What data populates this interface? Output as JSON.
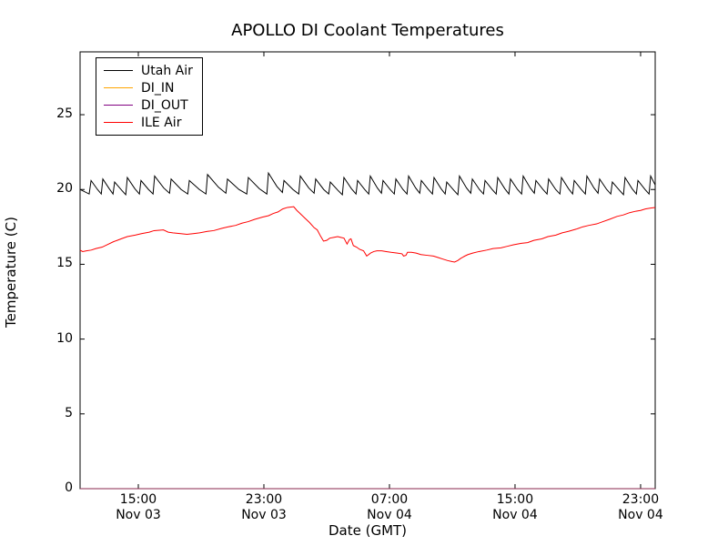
{
  "chart_data": {
    "type": "line",
    "title": "APOLLO DI Coolant Temperatures",
    "xlabel": "Date (GMT)",
    "ylabel": "Temperature (C)",
    "background": "#ffffff",
    "grid": false,
    "legend_position": "upper left",
    "ylim": [
      0,
      29.2
    ],
    "yticks": [
      0,
      5,
      10,
      15,
      20,
      25
    ],
    "xlim_hours": [
      0.29,
      36.93
    ],
    "x_unit": "hours since Nov 03 11:00 GMT",
    "xticks": [
      {
        "t": 4,
        "time": "15:00",
        "date": "Nov 03"
      },
      {
        "t": 12,
        "time": "23:00",
        "date": "Nov 03"
      },
      {
        "t": 20,
        "time": "07:00",
        "date": "Nov 04"
      },
      {
        "t": 28,
        "time": "15:00",
        "date": "Nov 04"
      },
      {
        "t": 36,
        "time": "23:00",
        "date": "Nov 04"
      }
    ],
    "series": [
      {
        "name": "Utah Air",
        "color": "#000000",
        "points": [
          [
            0.29,
            20.0
          ],
          [
            0.87,
            19.7
          ],
          [
            0.99,
            20.6
          ],
          [
            1.4,
            20.0
          ],
          [
            1.64,
            19.7
          ],
          [
            1.74,
            20.7
          ],
          [
            2.15,
            20.05
          ],
          [
            2.39,
            19.7
          ],
          [
            2.49,
            20.5
          ],
          [
            2.94,
            19.95
          ],
          [
            3.2,
            19.65
          ],
          [
            3.3,
            20.8
          ],
          [
            3.78,
            20.05
          ],
          [
            4.07,
            19.7
          ],
          [
            4.17,
            20.6
          ],
          [
            4.65,
            20.0
          ],
          [
            4.94,
            19.7
          ],
          [
            5.04,
            20.9
          ],
          [
            5.62,
            20.1
          ],
          [
            5.99,
            19.75
          ],
          [
            6.09,
            20.7
          ],
          [
            6.73,
            20.0
          ],
          [
            7.15,
            19.7
          ],
          [
            7.25,
            20.6
          ],
          [
            7.89,
            20.0
          ],
          [
            8.31,
            19.7
          ],
          [
            8.41,
            21.0
          ],
          [
            9.11,
            20.15
          ],
          [
            9.58,
            19.75
          ],
          [
            9.68,
            20.7
          ],
          [
            10.41,
            20.0
          ],
          [
            10.91,
            19.7
          ],
          [
            11.01,
            20.8
          ],
          [
            11.71,
            20.05
          ],
          [
            12.19,
            19.7
          ],
          [
            12.29,
            21.1
          ],
          [
            12.83,
            20.2
          ],
          [
            13.18,
            19.8
          ],
          [
            13.28,
            20.6
          ],
          [
            13.85,
            20.0
          ],
          [
            14.22,
            19.7
          ],
          [
            14.32,
            20.9
          ],
          [
            14.86,
            20.1
          ],
          [
            15.2,
            19.75
          ],
          [
            15.3,
            20.7
          ],
          [
            15.81,
            20.0
          ],
          [
            16.13,
            19.7
          ],
          [
            16.23,
            20.5
          ],
          [
            16.71,
            19.95
          ],
          [
            17.0,
            19.65
          ],
          [
            17.1,
            20.8
          ],
          [
            17.58,
            20.05
          ],
          [
            17.87,
            19.7
          ],
          [
            17.97,
            20.6
          ],
          [
            18.42,
            20.0
          ],
          [
            18.68,
            19.7
          ],
          [
            18.78,
            20.9
          ],
          [
            19.23,
            20.1
          ],
          [
            19.49,
            19.75
          ],
          [
            19.59,
            20.6
          ],
          [
            20.04,
            20.0
          ],
          [
            20.31,
            19.7
          ],
          [
            20.41,
            20.7
          ],
          [
            20.86,
            20.0
          ],
          [
            21.12,
            19.7
          ],
          [
            21.22,
            20.9
          ],
          [
            21.67,
            20.1
          ],
          [
            21.93,
            19.75
          ],
          [
            22.03,
            20.6
          ],
          [
            22.48,
            20.0
          ],
          [
            22.74,
            19.7
          ],
          [
            22.84,
            20.8
          ],
          [
            23.29,
            20.05
          ],
          [
            23.55,
            19.7
          ],
          [
            23.65,
            20.5
          ],
          [
            24.1,
            19.95
          ],
          [
            24.36,
            19.65
          ],
          [
            24.46,
            20.9
          ],
          [
            24.91,
            20.1
          ],
          [
            25.18,
            19.75
          ],
          [
            25.28,
            20.7
          ],
          [
            25.73,
            20.0
          ],
          [
            25.99,
            19.7
          ],
          [
            26.09,
            20.6
          ],
          [
            26.54,
            20.0
          ],
          [
            26.8,
            19.7
          ],
          [
            26.9,
            20.8
          ],
          [
            27.35,
            20.05
          ],
          [
            27.61,
            19.7
          ],
          [
            27.71,
            20.7
          ],
          [
            28.16,
            20.0
          ],
          [
            28.42,
            19.7
          ],
          [
            28.52,
            20.9
          ],
          [
            28.97,
            20.1
          ],
          [
            29.23,
            19.75
          ],
          [
            29.33,
            20.6
          ],
          [
            29.78,
            20.0
          ],
          [
            30.04,
            19.7
          ],
          [
            30.14,
            20.7
          ],
          [
            30.59,
            20.0
          ],
          [
            30.86,
            19.7
          ],
          [
            30.96,
            20.8
          ],
          [
            31.41,
            20.05
          ],
          [
            31.67,
            19.7
          ],
          [
            31.77,
            20.6
          ],
          [
            32.22,
            20.0
          ],
          [
            32.48,
            19.7
          ],
          [
            32.58,
            20.9
          ],
          [
            33.03,
            20.1
          ],
          [
            33.29,
            19.75
          ],
          [
            33.39,
            20.7
          ],
          [
            33.84,
            20.0
          ],
          [
            34.1,
            19.7
          ],
          [
            34.2,
            20.5
          ],
          [
            34.65,
            19.95
          ],
          [
            34.91,
            19.65
          ],
          [
            35.01,
            20.8
          ],
          [
            35.46,
            20.05
          ],
          [
            35.73,
            19.7
          ],
          [
            35.83,
            20.6
          ],
          [
            36.28,
            20.0
          ],
          [
            36.54,
            19.7
          ],
          [
            36.64,
            20.9
          ],
          [
            36.93,
            20.3
          ]
        ]
      },
      {
        "name": "DI_IN",
        "color": "#ffa500",
        "points": [
          [
            0.29,
            0
          ],
          [
            36.93,
            0
          ]
        ]
      },
      {
        "name": "DI_OUT",
        "color": "#800080",
        "points": [
          [
            0.29,
            0
          ],
          [
            36.93,
            0
          ]
        ]
      },
      {
        "name": "ILE Air",
        "color": "#ff0000",
        "points": [
          [
            0.29,
            15.95
          ],
          [
            0.45,
            15.85
          ],
          [
            0.7,
            15.9
          ],
          [
            1.0,
            15.95
          ],
          [
            1.3,
            16.05
          ],
          [
            1.7,
            16.15
          ],
          [
            2.0,
            16.3
          ],
          [
            2.4,
            16.5
          ],
          [
            2.9,
            16.7
          ],
          [
            3.3,
            16.85
          ],
          [
            3.8,
            16.95
          ],
          [
            4.2,
            17.05
          ],
          [
            4.7,
            17.15
          ],
          [
            5.0,
            17.25
          ],
          [
            5.6,
            17.3
          ],
          [
            5.9,
            17.15
          ],
          [
            6.2,
            17.1
          ],
          [
            6.7,
            17.05
          ],
          [
            7.1,
            17.0
          ],
          [
            7.5,
            17.05
          ],
          [
            7.9,
            17.1
          ],
          [
            8.4,
            17.2
          ],
          [
            8.8,
            17.25
          ],
          [
            9.3,
            17.4
          ],
          [
            9.7,
            17.5
          ],
          [
            10.2,
            17.6
          ],
          [
            10.6,
            17.75
          ],
          [
            11.0,
            17.85
          ],
          [
            11.4,
            18.0
          ],
          [
            11.9,
            18.15
          ],
          [
            12.3,
            18.25
          ],
          [
            12.6,
            18.4
          ],
          [
            12.9,
            18.5
          ],
          [
            13.2,
            18.7
          ],
          [
            13.5,
            18.8
          ],
          [
            13.9,
            18.85
          ],
          [
            14.1,
            18.6
          ],
          [
            14.3,
            18.4
          ],
          [
            14.6,
            18.1
          ],
          [
            14.9,
            17.8
          ],
          [
            15.2,
            17.45
          ],
          [
            15.4,
            17.3
          ],
          [
            15.6,
            16.9
          ],
          [
            15.8,
            16.55
          ],
          [
            16.0,
            16.6
          ],
          [
            16.2,
            16.75
          ],
          [
            16.45,
            16.8
          ],
          [
            16.7,
            16.85
          ],
          [
            16.9,
            16.8
          ],
          [
            17.1,
            16.75
          ],
          [
            17.3,
            16.35
          ],
          [
            17.45,
            16.65
          ],
          [
            17.55,
            16.7
          ],
          [
            17.7,
            16.25
          ],
          [
            17.9,
            16.15
          ],
          [
            18.1,
            16.0
          ],
          [
            18.35,
            15.9
          ],
          [
            18.55,
            15.55
          ],
          [
            18.8,
            15.75
          ],
          [
            19.0,
            15.85
          ],
          [
            19.2,
            15.9
          ],
          [
            19.5,
            15.9
          ],
          [
            19.8,
            15.85
          ],
          [
            20.1,
            15.8
          ],
          [
            20.5,
            15.75
          ],
          [
            20.8,
            15.7
          ],
          [
            20.9,
            15.55
          ],
          [
            21.05,
            15.6
          ],
          [
            21.15,
            15.8
          ],
          [
            21.4,
            15.8
          ],
          [
            21.7,
            15.75
          ],
          [
            22.0,
            15.65
          ],
          [
            22.4,
            15.6
          ],
          [
            22.8,
            15.55
          ],
          [
            23.1,
            15.45
          ],
          [
            23.4,
            15.35
          ],
          [
            23.7,
            15.25
          ],
          [
            24.0,
            15.18
          ],
          [
            24.15,
            15.15
          ],
          [
            24.35,
            15.25
          ],
          [
            24.55,
            15.4
          ],
          [
            24.8,
            15.55
          ],
          [
            25.0,
            15.65
          ],
          [
            25.3,
            15.75
          ],
          [
            25.7,
            15.85
          ],
          [
            26.2,
            15.95
          ],
          [
            26.6,
            16.05
          ],
          [
            27.1,
            16.1
          ],
          [
            27.5,
            16.2
          ],
          [
            27.9,
            16.3
          ],
          [
            28.4,
            16.4
          ],
          [
            28.8,
            16.45
          ],
          [
            29.2,
            16.6
          ],
          [
            29.7,
            16.7
          ],
          [
            30.1,
            16.85
          ],
          [
            30.6,
            16.95
          ],
          [
            31.0,
            17.1
          ],
          [
            31.4,
            17.2
          ],
          [
            31.9,
            17.35
          ],
          [
            32.3,
            17.5
          ],
          [
            32.7,
            17.6
          ],
          [
            33.2,
            17.7
          ],
          [
            33.6,
            17.85
          ],
          [
            34.0,
            18.0
          ],
          [
            34.5,
            18.2
          ],
          [
            34.9,
            18.3
          ],
          [
            35.3,
            18.45
          ],
          [
            35.7,
            18.55
          ],
          [
            36.0,
            18.6
          ],
          [
            36.3,
            18.7
          ],
          [
            36.6,
            18.75
          ],
          [
            36.93,
            18.8
          ]
        ]
      }
    ]
  }
}
